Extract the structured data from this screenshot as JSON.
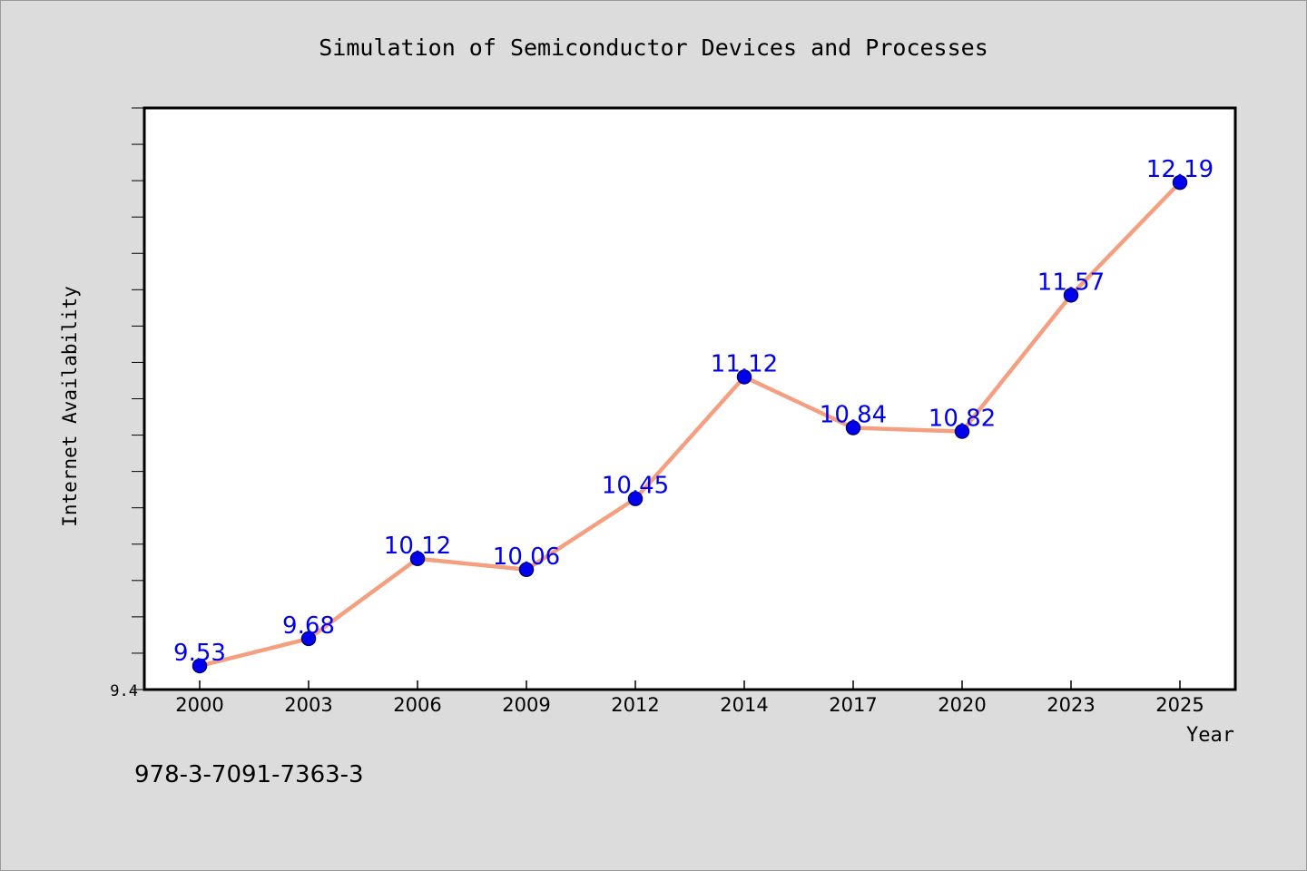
{
  "chart_data": {
    "type": "line",
    "title": "Simulation of Semiconductor Devices and Processes",
    "xlabel": "Year",
    "ylabel": "Internet Availability",
    "categories": [
      "2000",
      "2003",
      "2006",
      "2009",
      "2012",
      "2014",
      "2017",
      "2020",
      "2023",
      "2025"
    ],
    "series": [
      {
        "values": [
          9.53,
          9.68,
          10.12,
          10.06,
          10.45,
          11.12,
          10.84,
          10.82,
          11.57,
          12.19
        ]
      }
    ],
    "data_labels": [
      "9.53",
      "9.68",
      "10.12",
      "10.06",
      "10.45",
      "11.12",
      "10.84",
      "10.82",
      "11.57",
      "12.19"
    ],
    "y_tick_label": "9.4",
    "ylim": [
      9.4,
      12.6
    ],
    "y_minor_tick_step": 0.2,
    "grid": false,
    "legend": "none",
    "colors": {
      "line": "#f4a080",
      "marker_fill": "#0000ee",
      "marker_edge": "#00007a",
      "data_label": "#0000ee",
      "plot_background": "#ffffff",
      "page_background": "#dcdcdc"
    }
  },
  "footer": {
    "isbn": "978-3-7091-7363-3"
  }
}
